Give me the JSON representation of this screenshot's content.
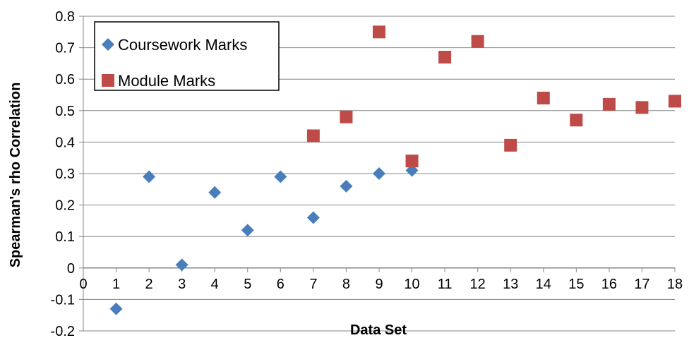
{
  "chart_data": {
    "type": "scatter",
    "title": "",
    "xlabel": "Data Set",
    "ylabel": "Spearman's rho Correlation",
    "xlim": [
      0,
      18
    ],
    "ylim": [
      -0.2,
      0.8
    ],
    "x_ticks": [
      "0",
      "1",
      "2",
      "3",
      "4",
      "5",
      "6",
      "7",
      "8",
      "9",
      "10",
      "11",
      "12",
      "13",
      "14",
      "15",
      "16",
      "17",
      "18"
    ],
    "y_ticks": [
      "0.8",
      "0.7",
      "0.6",
      "0.5",
      "0.4",
      "0.3",
      "0.2",
      "0.1",
      "0",
      "-0.1",
      "-0.2"
    ],
    "grid": true,
    "legend_position": "top-left",
    "series": [
      {
        "name": "Coursework Marks",
        "marker": "diamond",
        "color": "#4a7ebb",
        "x": [
          1,
          2,
          3,
          4,
          5,
          6,
          7,
          8,
          9,
          10
        ],
        "y": [
          -0.13,
          0.29,
          0.01,
          0.24,
          0.12,
          0.29,
          0.16,
          0.26,
          0.3,
          0.31
        ]
      },
      {
        "name": "Module Marks",
        "marker": "square",
        "color": "#be4b48",
        "x": [
          7,
          8,
          9,
          10,
          11,
          12,
          13,
          14,
          15,
          16,
          17,
          18
        ],
        "y": [
          0.42,
          0.48,
          0.75,
          0.34,
          0.67,
          0.72,
          0.39,
          0.54,
          0.47,
          0.52,
          0.51,
          0.53
        ]
      }
    ]
  }
}
